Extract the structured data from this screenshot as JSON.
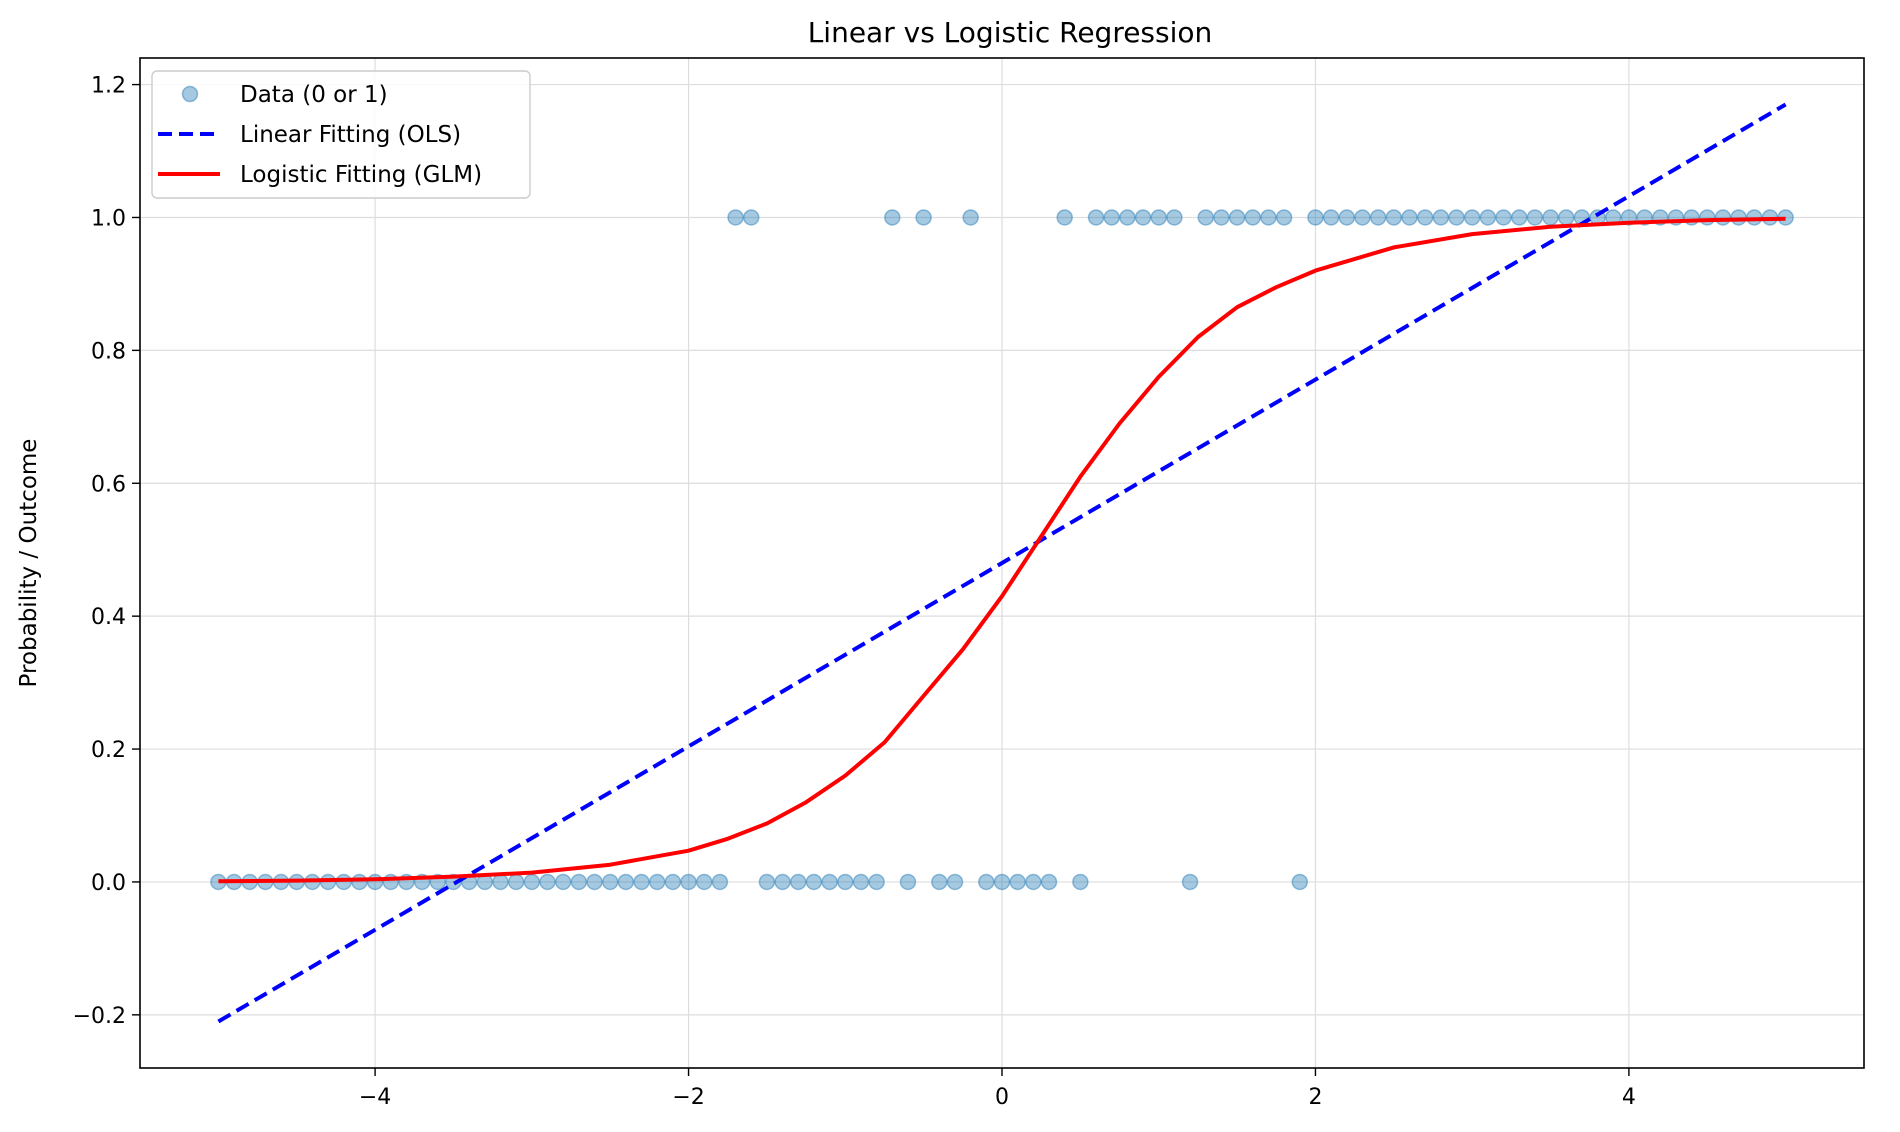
{
  "chart_data": {
    "type": "scatter",
    "title": "Linear vs Logistic Regression",
    "xlabel": "",
    "ylabel": "Probability / Outcome",
    "xlim": [
      -5.5,
      5.5
    ],
    "ylim": [
      -0.28,
      1.24
    ],
    "x_ticks": [
      -4,
      -2,
      0,
      2,
      4
    ],
    "y_ticks": [
      -0.2,
      0.0,
      0.2,
      0.4,
      0.6,
      0.8,
      1.0,
      1.2
    ],
    "grid": true,
    "legend_placement": "top-left",
    "series": [
      {
        "name": "Data (0 or 1)",
        "kind": "scatter",
        "color": "#1f77b4",
        "points": [
          [
            -5.0,
            0
          ],
          [
            -4.9,
            0
          ],
          [
            -4.8,
            0
          ],
          [
            -4.7,
            0
          ],
          [
            -4.6,
            0
          ],
          [
            -4.5,
            0
          ],
          [
            -4.4,
            0
          ],
          [
            -4.3,
            0
          ],
          [
            -4.2,
            0
          ],
          [
            -4.1,
            0
          ],
          [
            -4.0,
            0
          ],
          [
            -3.9,
            0
          ],
          [
            -3.8,
            0
          ],
          [
            -3.7,
            0
          ],
          [
            -3.6,
            0
          ],
          [
            -3.5,
            0
          ],
          [
            -3.4,
            0
          ],
          [
            -3.3,
            0
          ],
          [
            -3.2,
            0
          ],
          [
            -3.1,
            0
          ],
          [
            -3.0,
            0
          ],
          [
            -2.9,
            0
          ],
          [
            -2.8,
            0
          ],
          [
            -2.7,
            0
          ],
          [
            -2.6,
            0
          ],
          [
            -2.5,
            0
          ],
          [
            -2.4,
            0
          ],
          [
            -2.3,
            0
          ],
          [
            -2.2,
            0
          ],
          [
            -2.1,
            0
          ],
          [
            -2.0,
            0
          ],
          [
            -1.9,
            0
          ],
          [
            -1.8,
            0
          ],
          [
            -1.7,
            1
          ],
          [
            -1.6,
            1
          ],
          [
            -1.5,
            0
          ],
          [
            -1.4,
            0
          ],
          [
            -1.3,
            0
          ],
          [
            -1.2,
            0
          ],
          [
            -1.1,
            0
          ],
          [
            -1.0,
            0
          ],
          [
            -0.9,
            0
          ],
          [
            -0.8,
            0
          ],
          [
            -0.7,
            1
          ],
          [
            -0.6,
            0
          ],
          [
            -0.5,
            1
          ],
          [
            -0.4,
            0
          ],
          [
            -0.3,
            0
          ],
          [
            -0.2,
            1
          ],
          [
            -0.1,
            0
          ],
          [
            0.0,
            0
          ],
          [
            0.1,
            0
          ],
          [
            0.2,
            0
          ],
          [
            0.3,
            0
          ],
          [
            0.4,
            1
          ],
          [
            0.5,
            0
          ],
          [
            0.6,
            1
          ],
          [
            0.7,
            1
          ],
          [
            0.8,
            1
          ],
          [
            0.9,
            1
          ],
          [
            1.0,
            1
          ],
          [
            1.1,
            1
          ],
          [
            1.2,
            0
          ],
          [
            1.3,
            1
          ],
          [
            1.4,
            1
          ],
          [
            1.5,
            1
          ],
          [
            1.6,
            1
          ],
          [
            1.7,
            1
          ],
          [
            1.8,
            1
          ],
          [
            1.9,
            0
          ],
          [
            2.0,
            1
          ],
          [
            2.1,
            1
          ],
          [
            2.2,
            1
          ],
          [
            2.3,
            1
          ],
          [
            2.4,
            1
          ],
          [
            2.5,
            1
          ],
          [
            2.6,
            1
          ],
          [
            2.7,
            1
          ],
          [
            2.8,
            1
          ],
          [
            2.9,
            1
          ],
          [
            3.0,
            1
          ],
          [
            3.1,
            1
          ],
          [
            3.2,
            1
          ],
          [
            3.3,
            1
          ],
          [
            3.4,
            1
          ],
          [
            3.5,
            1
          ],
          [
            3.6,
            1
          ],
          [
            3.7,
            1
          ],
          [
            3.8,
            1
          ],
          [
            3.9,
            1
          ],
          [
            4.0,
            1
          ],
          [
            4.1,
            1
          ],
          [
            4.2,
            1
          ],
          [
            4.3,
            1
          ],
          [
            4.4,
            1
          ],
          [
            4.5,
            1
          ],
          [
            4.6,
            1
          ],
          [
            4.7,
            1
          ],
          [
            4.8,
            1
          ],
          [
            4.9,
            1
          ],
          [
            5.0,
            1
          ]
        ]
      },
      {
        "name": "Linear Fitting (OLS)",
        "kind": "line",
        "style": "dashed",
        "color": "#0000ff",
        "points": [
          [
            -5.0,
            -0.21
          ],
          [
            5.0,
            1.17
          ]
        ]
      },
      {
        "name": "Logistic Fitting (GLM)",
        "kind": "line",
        "style": "solid",
        "color": "#ff0000",
        "points": [
          [
            -5.0,
            0.001
          ],
          [
            -4.5,
            0.002
          ],
          [
            -4.0,
            0.004
          ],
          [
            -3.5,
            0.008
          ],
          [
            -3.0,
            0.014
          ],
          [
            -2.5,
            0.026
          ],
          [
            -2.0,
            0.047
          ],
          [
            -1.75,
            0.065
          ],
          [
            -1.5,
            0.088
          ],
          [
            -1.25,
            0.12
          ],
          [
            -1.0,
            0.16
          ],
          [
            -0.75,
            0.21
          ],
          [
            -0.5,
            0.28
          ],
          [
            -0.25,
            0.35
          ],
          [
            0.0,
            0.43
          ],
          [
            0.25,
            0.52
          ],
          [
            0.5,
            0.61
          ],
          [
            0.75,
            0.69
          ],
          [
            1.0,
            0.76
          ],
          [
            1.25,
            0.82
          ],
          [
            1.5,
            0.865
          ],
          [
            1.75,
            0.895
          ],
          [
            2.0,
            0.92
          ],
          [
            2.5,
            0.955
          ],
          [
            3.0,
            0.975
          ],
          [
            3.5,
            0.986
          ],
          [
            4.0,
            0.992
          ],
          [
            4.5,
            0.996
          ],
          [
            5.0,
            0.998
          ]
        ]
      }
    ]
  }
}
